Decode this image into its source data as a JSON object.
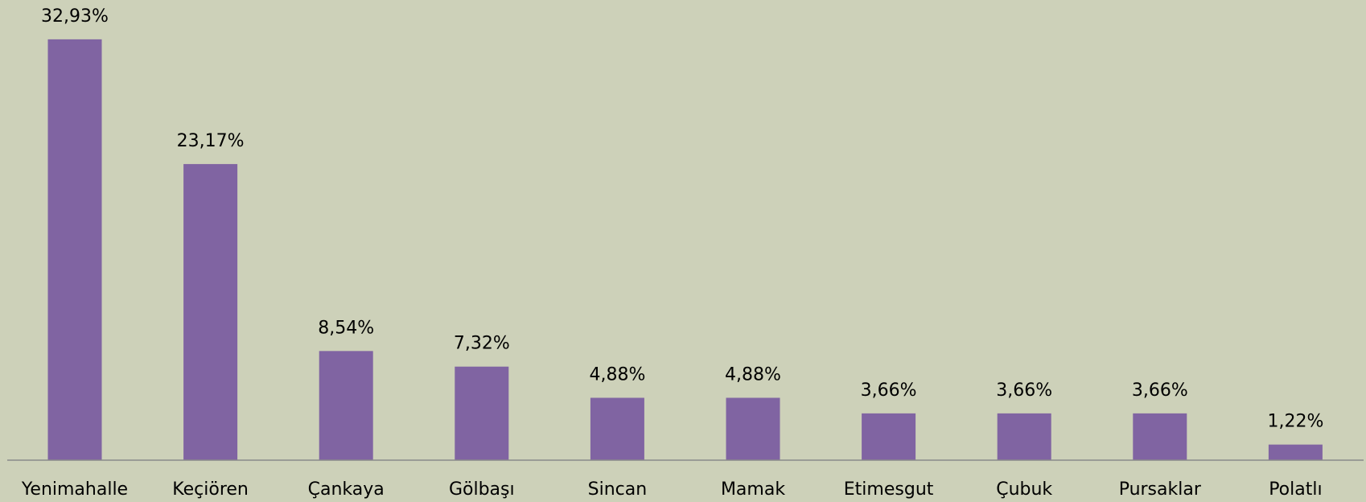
{
  "chart_data": {
    "type": "bar",
    "categories": [
      "Yenimahalle",
      "Keçiören",
      "Çankaya",
      "Gölbaşı",
      "Sincan",
      "Mamak",
      "Etimesgut",
      "Çubuk",
      "Pursaklar",
      "Polatlı"
    ],
    "values": [
      32.93,
      23.17,
      8.54,
      7.32,
      4.88,
      4.88,
      3.66,
      3.66,
      3.66,
      1.22
    ],
    "value_labels": [
      "32,93%",
      "23,17%",
      "8,54%",
      "7,32%",
      "4,88%",
      "4,88%",
      "3,66%",
      "3,66%",
      "3,66%",
      "1,22%"
    ],
    "color": "#8064a2",
    "ylim": [
      0,
      35
    ]
  }
}
